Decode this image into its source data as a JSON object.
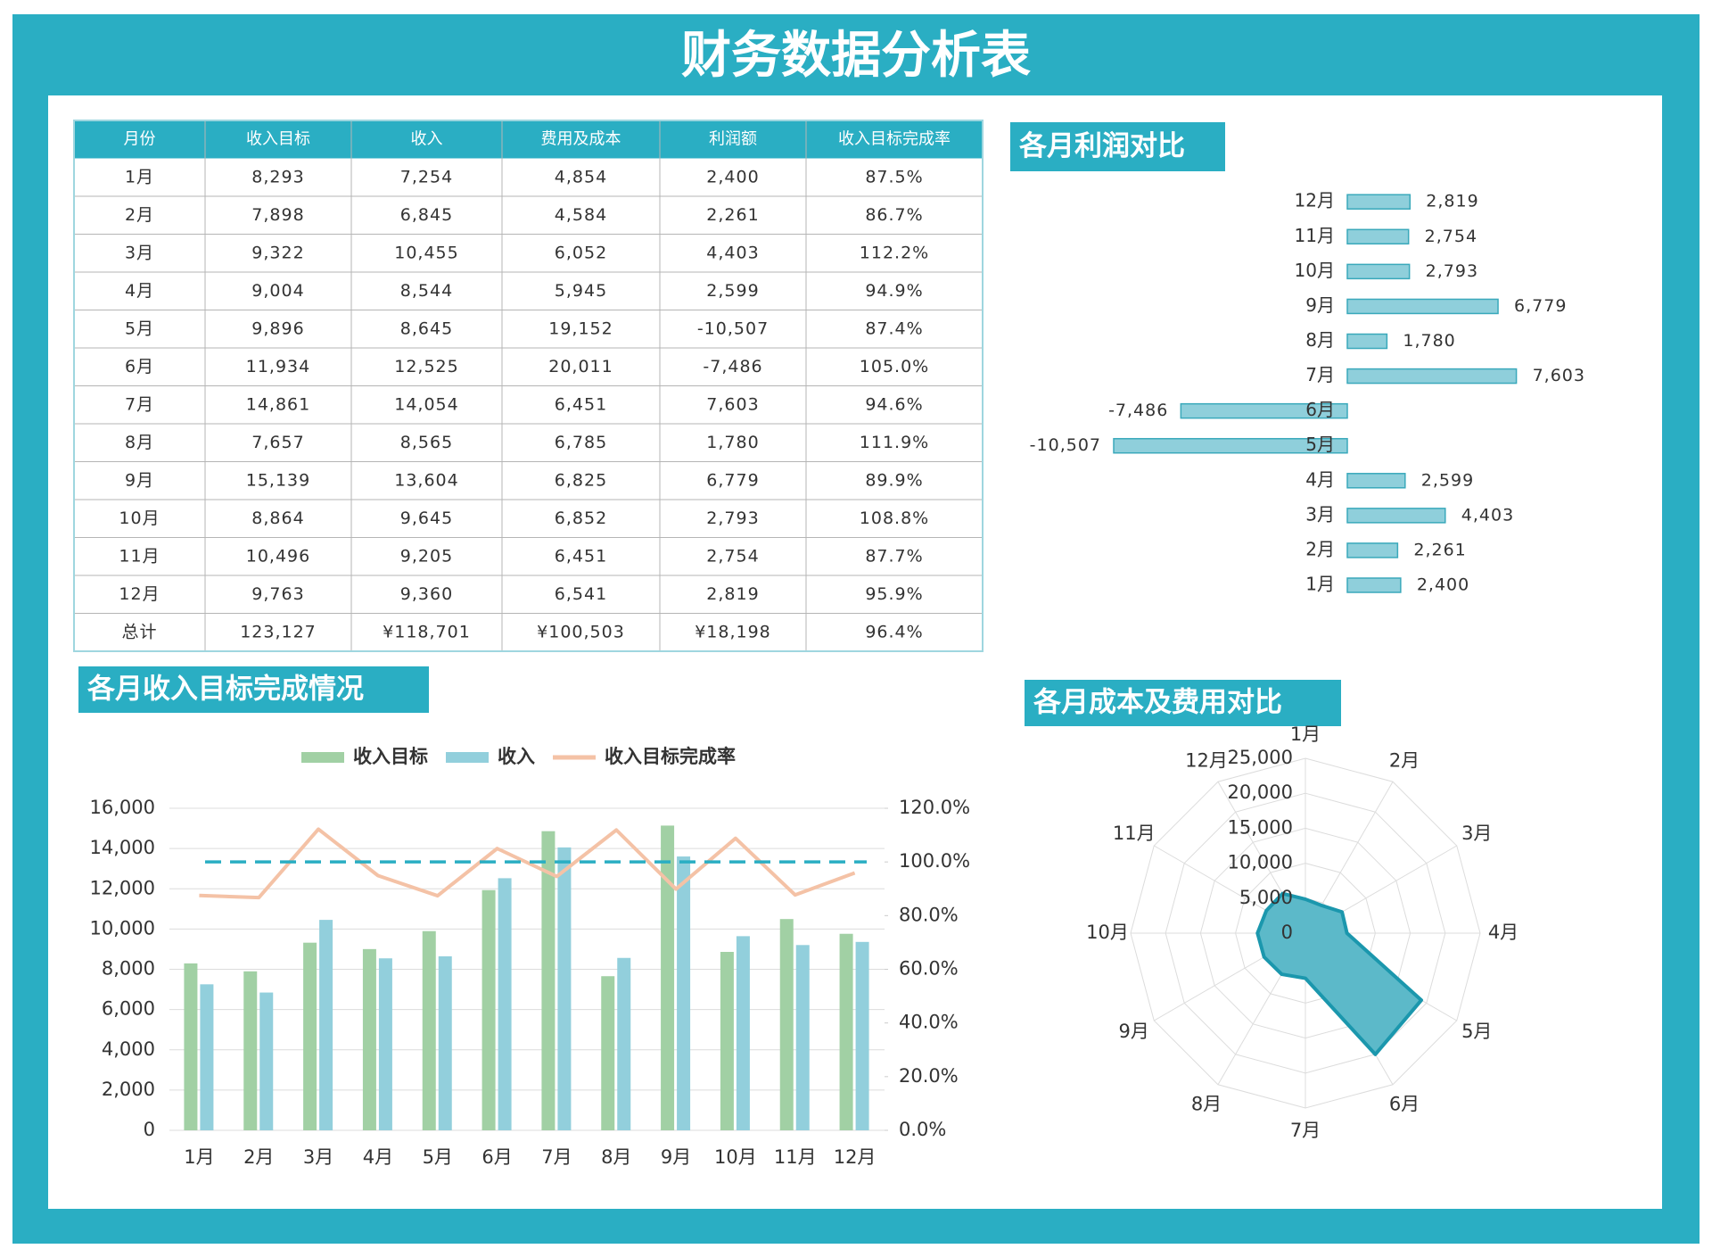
{
  "title": "财务数据分析表",
  "table": {
    "columns": [
      "月份",
      "收入目标",
      "收入",
      "费用及成本",
      "利润额",
      "收入目标完成率"
    ],
    "rows": [
      [
        "1月",
        "8,293",
        "7,254",
        "4,854",
        "2,400",
        "87.5%"
      ],
      [
        "2月",
        "7,898",
        "6,845",
        "4,584",
        "2,261",
        "86.7%"
      ],
      [
        "3月",
        "9,322",
        "10,455",
        "6,052",
        "4,403",
        "112.2%"
      ],
      [
        "4月",
        "9,004",
        "8,544",
        "5,945",
        "2,599",
        "94.9%"
      ],
      [
        "5月",
        "9,896",
        "8,645",
        "19,152",
        "-10,507",
        "87.4%"
      ],
      [
        "6月",
        "11,934",
        "12,525",
        "20,011",
        "-7,486",
        "105.0%"
      ],
      [
        "7月",
        "14,861",
        "14,054",
        "6,451",
        "7,603",
        "94.6%"
      ],
      [
        "8月",
        "7,657",
        "8,565",
        "6,785",
        "1,780",
        "111.9%"
      ],
      [
        "9月",
        "15,139",
        "13,604",
        "6,825",
        "6,779",
        "89.9%"
      ],
      [
        "10月",
        "8,864",
        "9,645",
        "6,852",
        "2,793",
        "108.8%"
      ],
      [
        "11月",
        "10,496",
        "9,205",
        "6,451",
        "2,754",
        "87.7%"
      ],
      [
        "12月",
        "9,763",
        "9,360",
        "6,541",
        "2,819",
        "95.9%"
      ],
      [
        "总计",
        "123,127",
        "¥118,701",
        "¥100,503",
        "¥18,198",
        "96.4%"
      ]
    ]
  },
  "chart_data": [
    {
      "type": "hbar",
      "title": "各月利润对比",
      "categories": [
        "1月",
        "2月",
        "3月",
        "4月",
        "5月",
        "6月",
        "7月",
        "8月",
        "9月",
        "10月",
        "11月",
        "12月"
      ],
      "values": [
        2400,
        2261,
        4403,
        2599,
        -10507,
        -7486,
        7603,
        1780,
        6779,
        2793,
        2754,
        2819
      ],
      "value_labels": [
        "2,400",
        "2,261",
        "4,403",
        "2,599",
        "-10,507",
        "-7,486",
        "7,603",
        "1,780",
        "6,779",
        "2,793",
        "2,754",
        "2,819"
      ],
      "color": "#8fcfdb"
    },
    {
      "type": "combo",
      "title": "各月收入目标完成情况",
      "categories": [
        "1月",
        "2月",
        "3月",
        "4月",
        "5月",
        "6月",
        "7月",
        "8月",
        "9月",
        "10月",
        "11月",
        "12月"
      ],
      "series": [
        {
          "name": "收入目标",
          "type": "bar",
          "color": "#a1d0a4",
          "values": [
            8293,
            7898,
            9322,
            9004,
            9896,
            11934,
            14861,
            7657,
            15139,
            8864,
            10496,
            9763
          ]
        },
        {
          "name": "收入",
          "type": "bar",
          "color": "#92cfdc",
          "values": [
            7254,
            6845,
            10455,
            8544,
            8645,
            12525,
            14054,
            8565,
            13604,
            9645,
            9205,
            9360
          ]
        },
        {
          "name": "收入目标完成率",
          "type": "line",
          "axis": "y2",
          "color": "#f4c2a6",
          "values": [
            87.5,
            86.7,
            112.2,
            94.9,
            87.4,
            105.0,
            94.6,
            111.9,
            89.9,
            108.8,
            87.7,
            95.9
          ]
        }
      ],
      "ylim": [
        0,
        16000
      ],
      "yticks": [
        0,
        {
          "value": 2000,
          "label": "2,000"
        },
        {
          "value": 4000,
          "label": "4,000"
        },
        {
          "value": 6000,
          "label": "6,000"
        },
        {
          "value": 8000,
          "label": "8,000"
        },
        {
          "value": 10000,
          "label": "10,000"
        },
        {
          "value": 12000,
          "label": "12,000"
        },
        {
          "value": 14000,
          "label": "14,000"
        },
        {
          "value": 16000,
          "label": "16,000"
        }
      ],
      "y2lim": [
        0,
        120
      ],
      "y2ticks": [
        {
          "value": 0,
          "label": "0.0%"
        },
        {
          "value": 20,
          "label": "20.0%"
        },
        {
          "value": 40,
          "label": "40.0%"
        },
        {
          "value": 60,
          "label": "60.0%"
        },
        {
          "value": 80,
          "label": "80.0%"
        },
        {
          "value": 100,
          "label": "100.0%"
        },
        {
          "value": 120,
          "label": "120.0%"
        }
      ],
      "reference_line": {
        "value": 100,
        "axis": "y2",
        "color": "#2aaec3"
      },
      "grid": true,
      "legend": "top"
    },
    {
      "type": "radar",
      "title": "各月成本及费用对比",
      "categories": [
        "1月",
        "2月",
        "3月",
        "4月",
        "5月",
        "6月",
        "7月",
        "8月",
        "9月",
        "10月",
        "11月",
        "12月"
      ],
      "values": [
        4854,
        4584,
        6052,
        5945,
        19152,
        20011,
        6451,
        6785,
        6825,
        6852,
        6451,
        6541
      ],
      "rlim": [
        0,
        25000
      ],
      "rticks": [
        0,
        {
          "value": 5000,
          "label": "5,000"
        },
        {
          "value": 10000,
          "label": "10,000"
        },
        {
          "value": 15000,
          "label": "15,000"
        },
        {
          "value": 20000,
          "label": "20,000"
        },
        {
          "value": 25000,
          "label": "25,000"
        }
      ],
      "color": "#5cb9c9",
      "stroke": "#1b97ad"
    }
  ]
}
